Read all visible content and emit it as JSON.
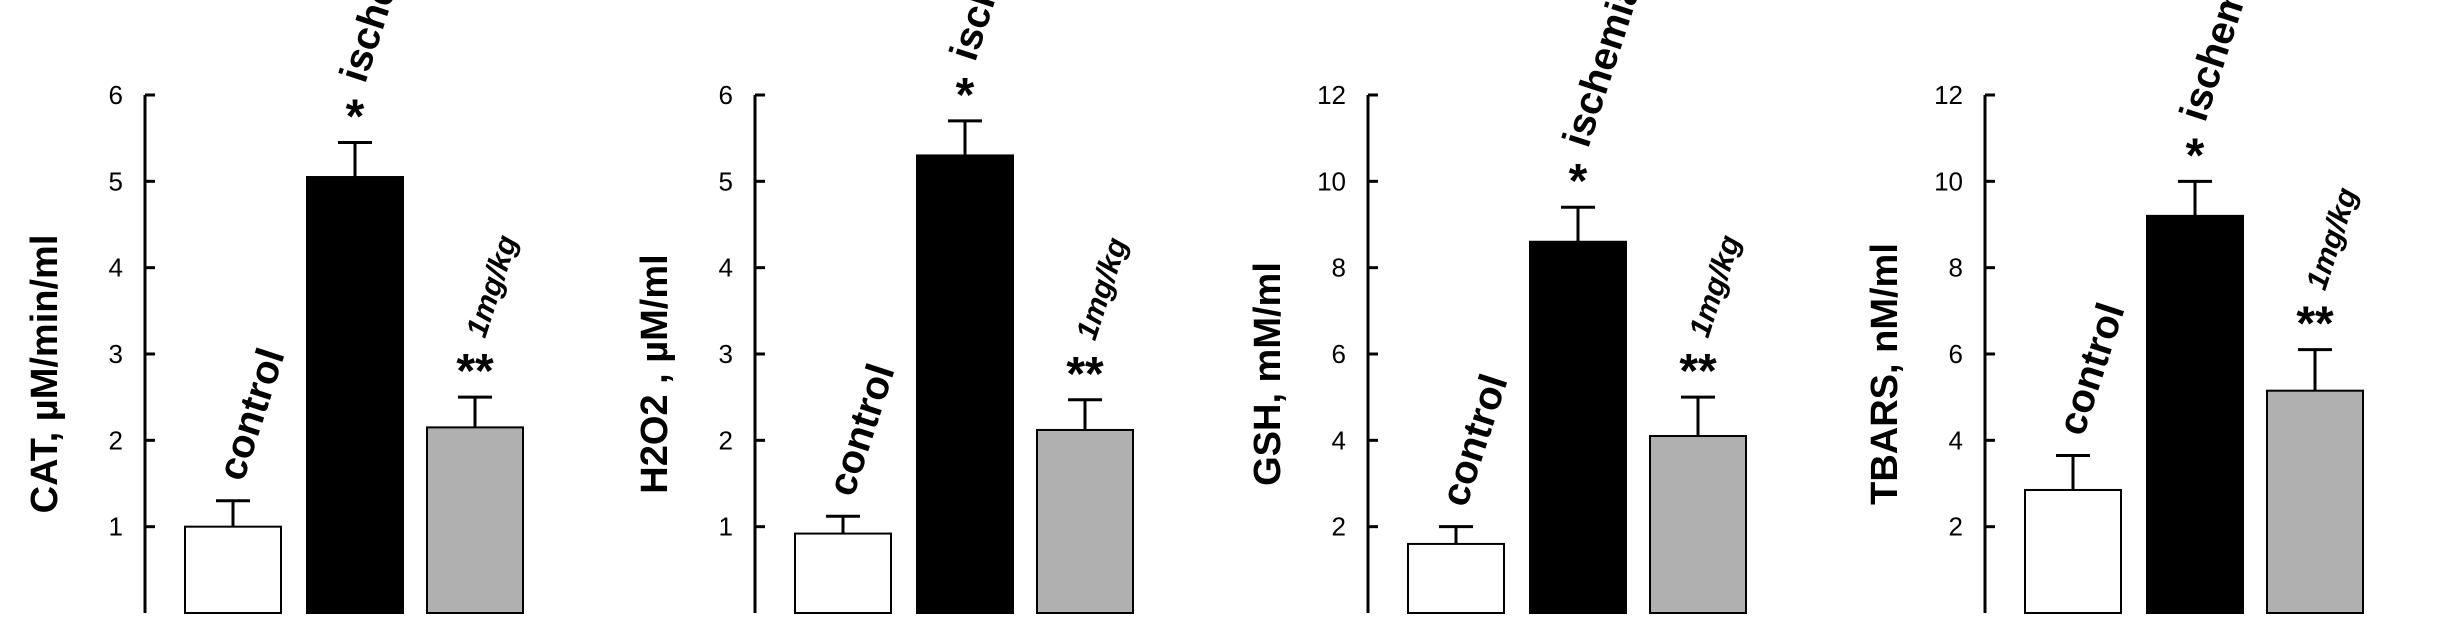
{
  "chart_data": [
    {
      "type": "bar",
      "ylabel": "CAT, µM/min/ml",
      "ylim": [
        0,
        6
      ],
      "yticks": [
        1,
        2,
        3,
        4,
        5,
        6
      ],
      "categories": [
        "control",
        "ischemia",
        "1mg/kg"
      ],
      "values": [
        1.0,
        5.05,
        2.15
      ],
      "errors": [
        0.3,
        0.4,
        0.35
      ],
      "significance": [
        "",
        "*",
        "**"
      ],
      "colors": [
        "#ffffff",
        "#000000",
        "#b0b0b0"
      ]
    },
    {
      "type": "bar",
      "ylabel": "H2O2 , µM/ml",
      "ylim": [
        0,
        6
      ],
      "yticks": [
        1,
        2,
        3,
        4,
        5,
        6
      ],
      "categories": [
        "control",
        "ischemia",
        "1mg/kg"
      ],
      "values": [
        0.92,
        5.3,
        2.12
      ],
      "errors": [
        0.2,
        0.4,
        0.35
      ],
      "significance": [
        "",
        "*",
        "**"
      ],
      "colors": [
        "#ffffff",
        "#000000",
        "#b0b0b0"
      ]
    },
    {
      "type": "bar",
      "ylabel": "GSH, mM/ml",
      "ylim": [
        0,
        12
      ],
      "yticks": [
        2,
        4,
        6,
        8,
        10,
        12
      ],
      "categories": [
        "control",
        "ischemia",
        "1mg/kg"
      ],
      "values": [
        1.6,
        8.6,
        4.1
      ],
      "errors": [
        0.4,
        0.8,
        0.9
      ],
      "significance": [
        "",
        "*",
        "**"
      ],
      "colors": [
        "#ffffff",
        "#000000",
        "#b0b0b0"
      ]
    },
    {
      "type": "bar",
      "ylabel": "TBARS, nM/ml",
      "ylim": [
        0,
        12
      ],
      "yticks": [
        2,
        4,
        6,
        8,
        10,
        12
      ],
      "categories": [
        "control",
        "ischemia",
        "1mg/kg"
      ],
      "values": [
        2.85,
        9.2,
        5.15
      ],
      "errors": [
        0.8,
        0.8,
        0.95
      ],
      "significance": [
        "",
        "*",
        "**"
      ],
      "colors": [
        "#ffffff",
        "#000000",
        "#b0b0b0"
      ]
    }
  ]
}
